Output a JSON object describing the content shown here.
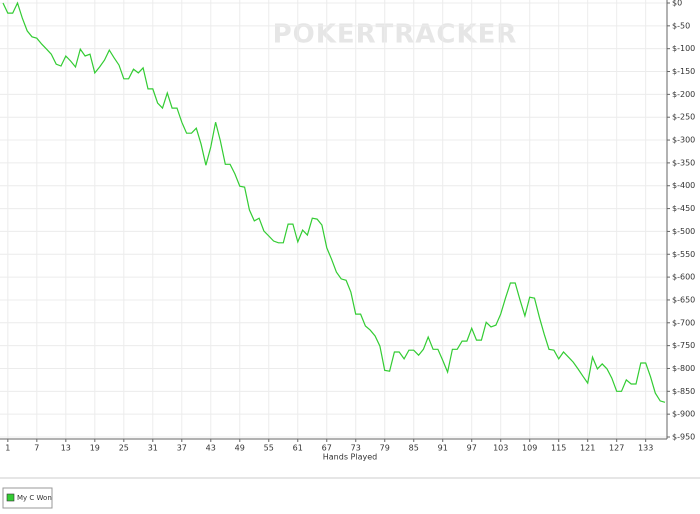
{
  "chart_data": {
    "type": "line",
    "watermark": "POKERTRACKER",
    "x_label": "Hands Played",
    "x": [
      0,
      1,
      2,
      3,
      4,
      5,
      6,
      7,
      8,
      9,
      10,
      11,
      12,
      13,
      14,
      15,
      16,
      17,
      18,
      19,
      20,
      21,
      22,
      23,
      24,
      25,
      26,
      27,
      28,
      29,
      30,
      31,
      32,
      33,
      34,
      35,
      36,
      37,
      38,
      39,
      40,
      41,
      42,
      43,
      44,
      45,
      46,
      47,
      48,
      49,
      50,
      51,
      52,
      53,
      54,
      55,
      56,
      57,
      58,
      59,
      60,
      61,
      62,
      63,
      64,
      65,
      66,
      67,
      68,
      69,
      70,
      71,
      72,
      73,
      74,
      75,
      76,
      77,
      78,
      79,
      80,
      81,
      82,
      83,
      84,
      85,
      86,
      87,
      88,
      89,
      90,
      91,
      92,
      93,
      94,
      95,
      96,
      97,
      98,
      99,
      100,
      101,
      102,
      103,
      104,
      105,
      106,
      107,
      108,
      109,
      110,
      111,
      112,
      113,
      114,
      115,
      116,
      117,
      118,
      119,
      120,
      121,
      122,
      123,
      124,
      125,
      126,
      127,
      128,
      129,
      130,
      131,
      132,
      133,
      134,
      135,
      136,
      137
    ],
    "series": [
      {
        "name": "My C Won",
        "color": "#33cc33",
        "values": [
          0,
          -22,
          -22,
          0,
          -33,
          -61,
          -74,
          -77,
          -90,
          -101,
          -112,
          -134,
          -138,
          -116,
          -127,
          -140,
          -101,
          -116,
          -112,
          -153,
          -140,
          -125,
          -103,
          -120,
          -136,
          -166,
          -166,
          -145,
          -153,
          -142,
          -188,
          -188,
          -219,
          -230,
          -197,
          -230,
          -230,
          -261,
          -285,
          -285,
          -274,
          -309,
          -355,
          -315,
          -261,
          -302,
          -353,
          -353,
          -374,
          -401,
          -403,
          -453,
          -477,
          -471,
          -499,
          -510,
          -521,
          -525,
          -525,
          -484,
          -484,
          -523,
          -497,
          -508,
          -471,
          -473,
          -486,
          -536,
          -561,
          -589,
          -604,
          -607,
          -633,
          -681,
          -681,
          -707,
          -716,
          -729,
          -751,
          -804,
          -806,
          -764,
          -764,
          -779,
          -760,
          -760,
          -771,
          -758,
          -731,
          -758,
          -758,
          -782,
          -808,
          -758,
          -758,
          -740,
          -740,
          -712,
          -738,
          -738,
          -699,
          -709,
          -705,
          -681,
          -646,
          -613,
          -613,
          -650,
          -685,
          -644,
          -646,
          -688,
          -725,
          -758,
          -760,
          -779,
          -764,
          -775,
          -786,
          -801,
          -817,
          -832,
          -775,
          -801,
          -790,
          -801,
          -821,
          -850,
          -850,
          -825,
          -834,
          -834,
          -788,
          -788,
          -818,
          -854,
          -871,
          -874
        ]
      }
    ],
    "xlim": [
      0,
      137
    ],
    "xticks": [
      1,
      7,
      13,
      19,
      25,
      31,
      37,
      43,
      49,
      55,
      61,
      67,
      73,
      79,
      85,
      91,
      97,
      103,
      109,
      115,
      121,
      127,
      133
    ],
    "ylim": [
      -950,
      0
    ],
    "yticks": [
      {
        "value": 0,
        "label": "$0"
      },
      {
        "value": -50,
        "label": "$-50"
      },
      {
        "value": -100,
        "label": "$-100"
      },
      {
        "value": -150,
        "label": "$-150"
      },
      {
        "value": -200,
        "label": "$-200"
      },
      {
        "value": -250,
        "label": "$-250"
      },
      {
        "value": -300,
        "label": "$-300"
      },
      {
        "value": -350,
        "label": "$-350"
      },
      {
        "value": -400,
        "label": "$-400"
      },
      {
        "value": -450,
        "label": "$-450"
      },
      {
        "value": -500,
        "label": "$-500"
      },
      {
        "value": -550,
        "label": "$-550"
      },
      {
        "value": -600,
        "label": "$-600"
      },
      {
        "value": -650,
        "label": "$-650"
      },
      {
        "value": -700,
        "label": "$-700"
      },
      {
        "value": -750,
        "label": "$-750"
      },
      {
        "value": -800,
        "label": "$-800"
      },
      {
        "value": -850,
        "label": "$-850"
      },
      {
        "value": -900,
        "label": "$-900"
      },
      {
        "value": -950,
        "label": "$-950"
      }
    ],
    "grid": true,
    "legend": "bottom-left"
  }
}
